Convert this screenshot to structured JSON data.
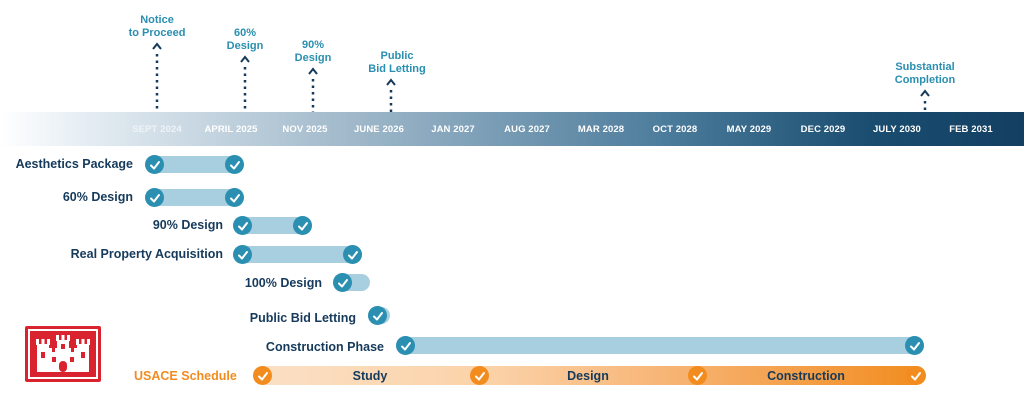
{
  "milestones": [
    {
      "label": "Notice\nto Proceed"
    },
    {
      "label": "60%\nDesign"
    },
    {
      "label": "90%\nDesign"
    },
    {
      "label": "Public\nBid Letting"
    },
    {
      "label": "Substantial\nCompletion"
    }
  ],
  "timeline": {
    "ticks": [
      "SEPT 2024",
      "APRIL 2025",
      "NOV 2025",
      "JUNE 2026",
      "JAN 2027",
      "AUG 2027",
      "MAR 2028",
      "OCT 2028",
      "MAY 2029",
      "DEC 2029",
      "JULY 2030",
      "FEB 2031"
    ]
  },
  "tasks": [
    {
      "label": "Aesthetics Package"
    },
    {
      "label": "60% Design"
    },
    {
      "label": "90% Design"
    },
    {
      "label": "Real Property Acquisition"
    },
    {
      "label": "100% Design"
    },
    {
      "label": "Public Bid Letting"
    },
    {
      "label": "Construction Phase"
    }
  ],
  "usace": {
    "label": "USACE Schedule",
    "phases": [
      "Study",
      "Design",
      "Construction"
    ]
  },
  "colors": {
    "accent": "#2a8fb1",
    "bar": "#a8cfe0",
    "navy": "#153a5b",
    "orange": "#f28c1f",
    "logo_red": "#d9232e"
  }
}
